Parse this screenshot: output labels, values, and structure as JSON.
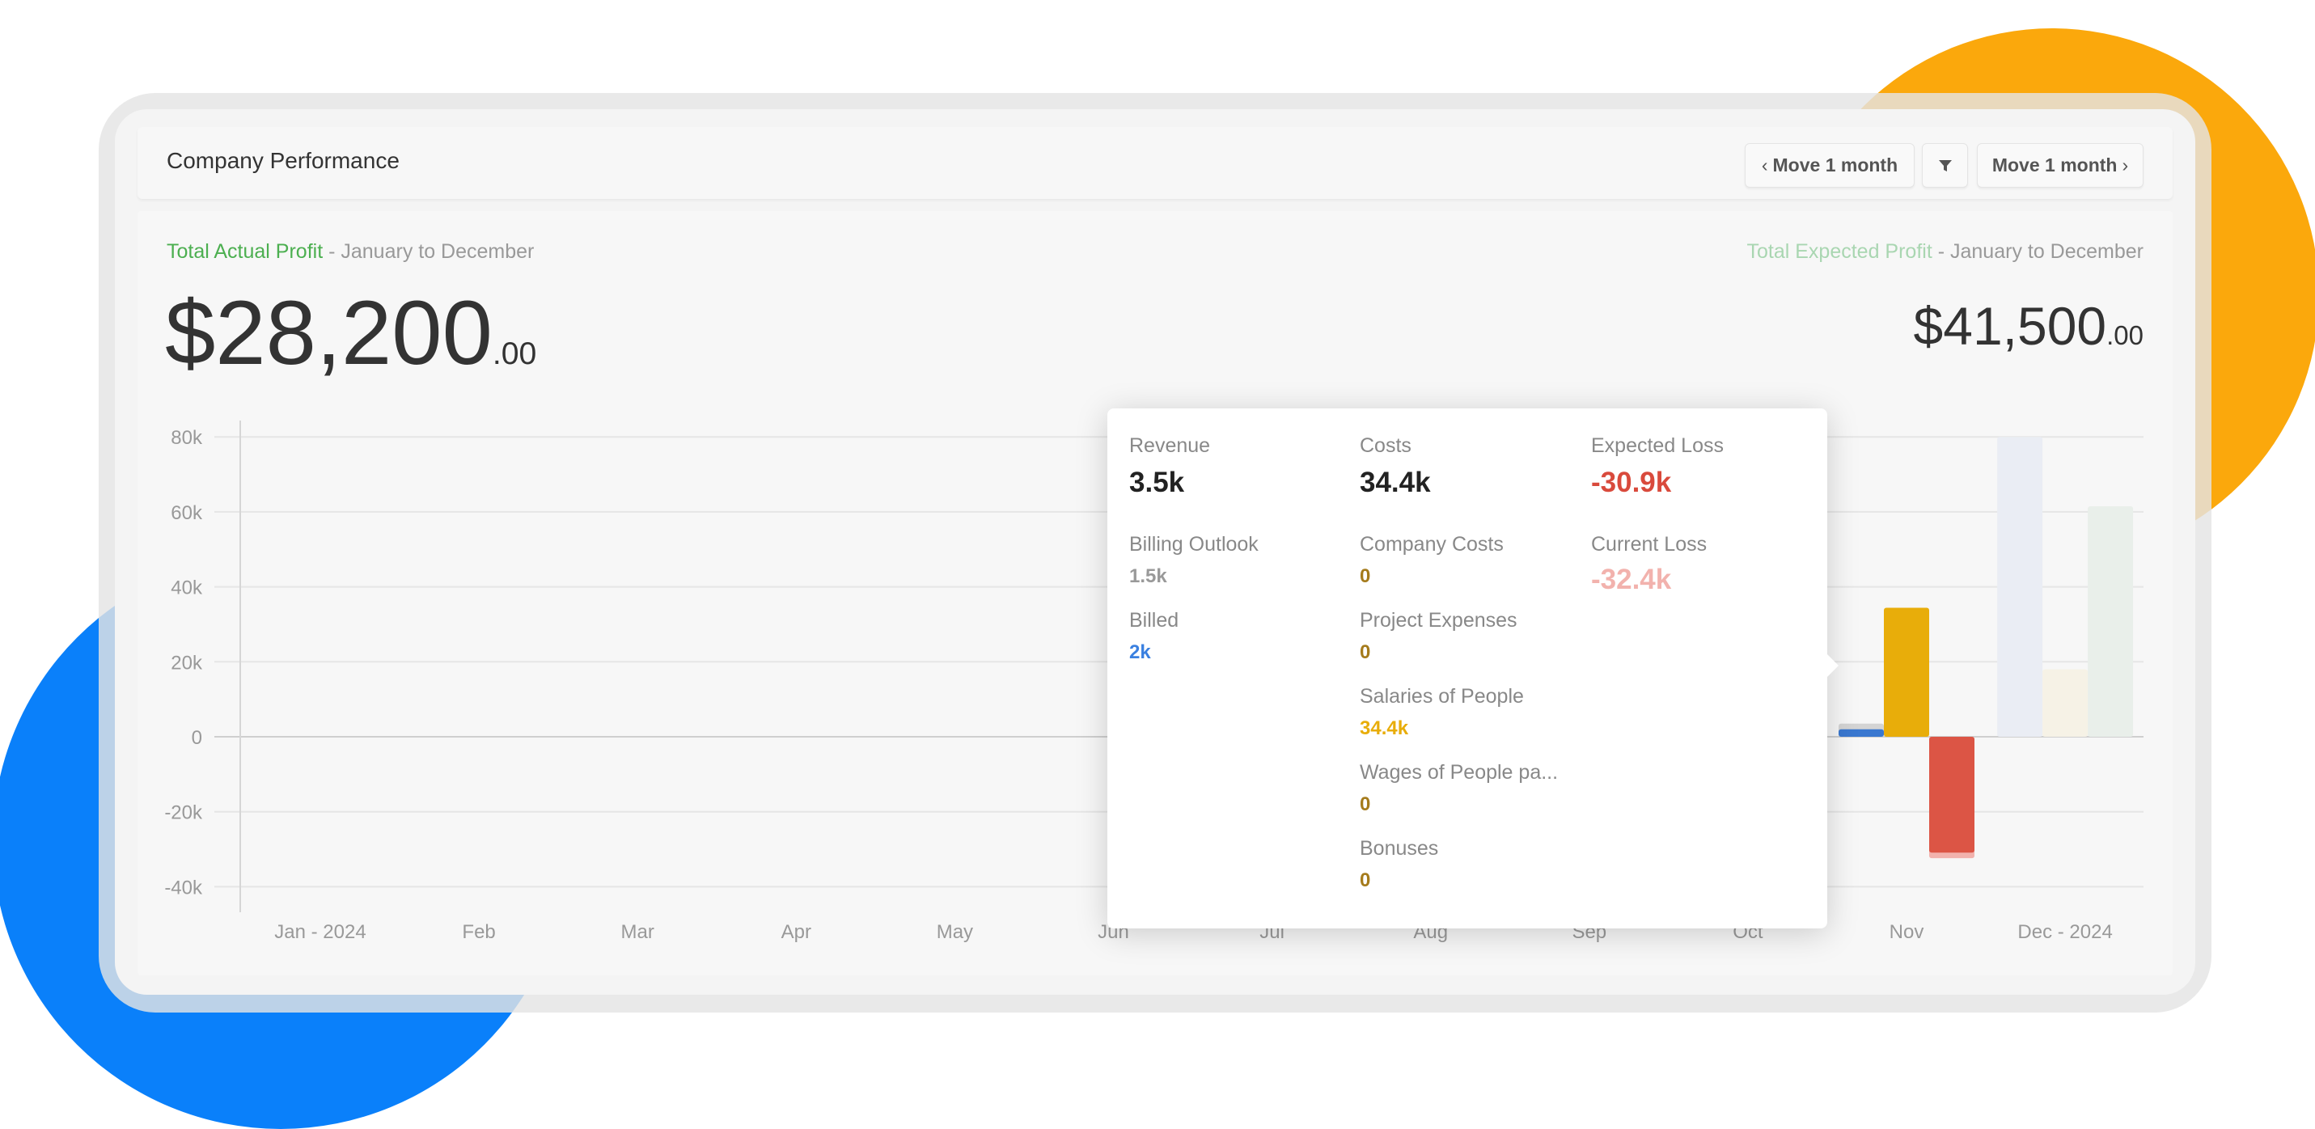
{
  "header": {
    "title": "Company Performance",
    "prev_button": "Move 1 month",
    "next_button": "Move 1 month",
    "prev_icon": "chevron-left-icon",
    "next_icon": "chevron-right-icon",
    "filter_icon": "filter-icon"
  },
  "summary": {
    "actual_label": "Total Actual Profit",
    "actual_range": " - January to December",
    "actual_amount": "$28,200",
    "actual_cents": ".00",
    "expected_label": "Total Expected Profit",
    "expected_range": " - January to December",
    "expected_amount": "$41,500",
    "expected_cents": ".00"
  },
  "colors": {
    "actual_green": "#4caf50",
    "expected_green": "#a9d6b1",
    "revenue_gray": "#d4d4d4",
    "billed_blue": "#3a78d0",
    "costs_yellow": "#e8ad0a",
    "loss_red": "#dc5545",
    "current_loss_pink": "#f2b2ad",
    "orange_accent": "#fba80c",
    "blue_accent": "#0a80fa"
  },
  "chart_data": {
    "type": "bar",
    "categories": [
      "Jan - 2024",
      "Feb",
      "Mar",
      "Apr",
      "May",
      "Jun",
      "Jul",
      "Aug",
      "Sep",
      "Oct",
      "Nov",
      "Dec - 2024"
    ],
    "yticks": [
      "80k",
      "60k",
      "40k",
      "20k",
      "0",
      "-20k",
      "-40k"
    ],
    "ytick_values": [
      80000,
      60000,
      40000,
      20000,
      0,
      -20000,
      -40000
    ],
    "ylim": [
      -40000,
      80000
    ],
    "grid": true,
    "series": [
      {
        "values": [
          0,
          0,
          0,
          0,
          0,
          0,
          0,
          0,
          0,
          0,
          3500,
          0
        ],
        "color": "#d4d4d4"
      },
      {
        "values": [
          0,
          0,
          0,
          0,
          0,
          0,
          0,
          0,
          0,
          0,
          2000,
          0
        ],
        "color": "#3a78d0"
      },
      {
        "values": [
          0,
          0,
          0,
          0,
          0,
          0,
          0,
          0,
          0,
          0,
          34400,
          0
        ],
        "color": "#e8ad0a"
      },
      {
        "values": [
          0,
          0,
          0,
          0,
          0,
          0,
          0,
          0,
          0,
          0,
          -32400,
          0
        ],
        "color": "#f2b2ad"
      },
      {
        "values": [
          0,
          0,
          0,
          0,
          0,
          0,
          0,
          0,
          0,
          0,
          -30900,
          0
        ],
        "color": "#dc5545"
      },
      {
        "values": [
          0,
          0,
          0,
          0,
          0,
          0,
          0,
          0,
          0,
          0,
          0,
          80000
        ],
        "color": "#eaedf4"
      },
      {
        "values": [
          0,
          0,
          0,
          0,
          0,
          0,
          0,
          0,
          0,
          0,
          0,
          18000
        ],
        "color": "#f6f2e6"
      },
      {
        "values": [
          0,
          0,
          0,
          0,
          0,
          0,
          0,
          0,
          0,
          0,
          0,
          61500
        ],
        "color": "#e9efea"
      }
    ]
  },
  "tooltip": {
    "revenue": {
      "label": "Revenue",
      "value": "3.5k"
    },
    "costs": {
      "label": "Costs",
      "value": "34.4k"
    },
    "expected_loss": {
      "label": "Expected Loss",
      "value": "-30.9k"
    },
    "billing_outlook": {
      "label": "Billing Outlook",
      "value": "1.5k"
    },
    "billed": {
      "label": "Billed",
      "value": "2k"
    },
    "company_costs": {
      "label": "Company Costs",
      "value": "0"
    },
    "project_expenses": {
      "label": "Project Expenses",
      "value": "0"
    },
    "salaries": {
      "label": "Salaries of People",
      "value": "34.4k"
    },
    "wages": {
      "label": "Wages of People pa...",
      "value": "0"
    },
    "bonuses": {
      "label": "Bonuses",
      "value": "0"
    },
    "current_loss": {
      "label": "Current Loss",
      "value": "-32.4k"
    }
  }
}
